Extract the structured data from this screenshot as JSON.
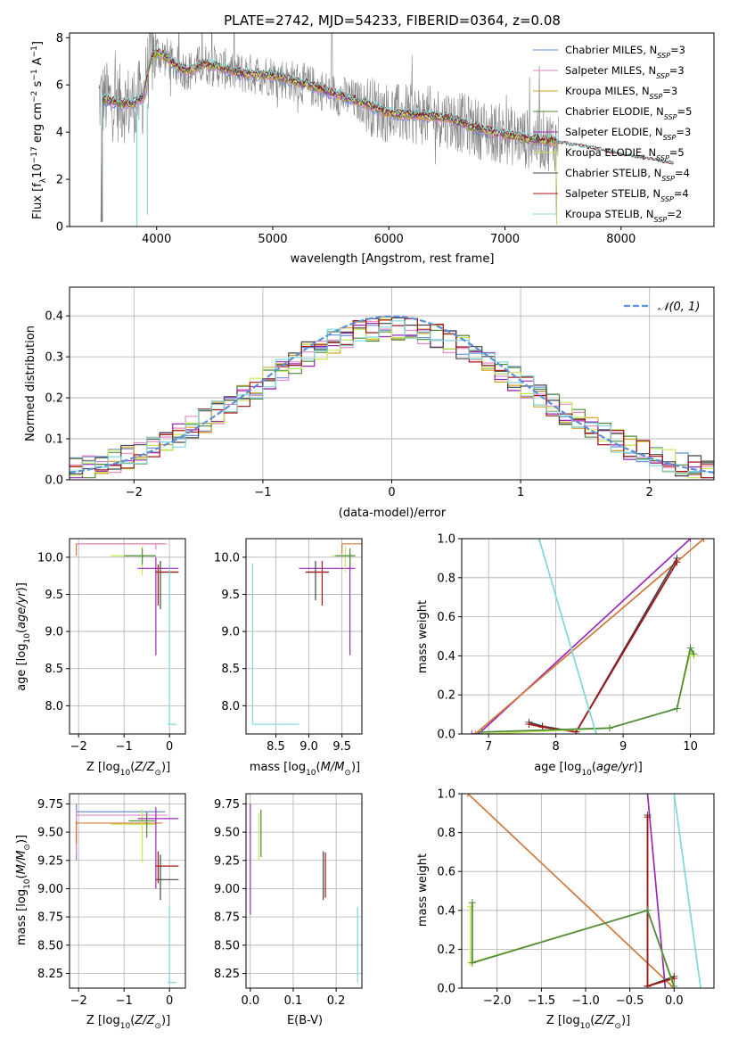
{
  "chart_data": [
    {
      "type": "line",
      "title": "PLATE=2742, MJD=54233, FIBERID=0364, z=0.08",
      "xlabel": "wavelength [Angstrom, rest frame]",
      "ylabel": "Flux [f_λ10^-17 erg cm^-2 s^-1 A^-1]",
      "xlim": [
        3250,
        8800
      ],
      "ylim": [
        0,
        8.2
      ],
      "xticks": [
        "4000",
        "5000",
        "6000",
        "7000",
        "8000"
      ],
      "yticks": [
        "0",
        "2",
        "4",
        "6",
        "8"
      ],
      "legend_position": "top-right",
      "series": [
        {
          "name": "Chabrier MILES, N_SSP=3",
          "color": "#6a8fd8"
        },
        {
          "name": "Salpeter MILES, N_SSP=3",
          "color": "#e58ac8"
        },
        {
          "name": "Kroupa MILES, N_SSP=3",
          "color": "#d6a020"
        },
        {
          "name": "Chabrier ELODIE, N_SSP=5",
          "color": "#4f8a3c"
        },
        {
          "name": "Salpeter ELODIE, N_SSP=3",
          "color": "#9b2ab8"
        },
        {
          "name": "Kroupa ELODIE, N_SSP=5",
          "color": "#c8e855"
        },
        {
          "name": "Chabrier STELIB, N_SSP=4",
          "color": "#444444"
        },
        {
          "name": "Salpeter STELIB, N_SSP=4",
          "color": "#a41515"
        },
        {
          "name": "Kroupa STELIB, N_SSP=2",
          "color": "#7fd8d8"
        }
      ],
      "data_color": "#808080",
      "model_profile": {
        "x": [
          3530,
          3600,
          3700,
          3800,
          3880,
          3950,
          4000,
          4100,
          4200,
          4300,
          4400,
          4500,
          4700,
          5000,
          5300,
          5600,
          5800,
          6000,
          6300,
          6500,
          6800,
          7000,
          7200,
          7450
        ],
        "y": [
          5.4,
          5.3,
          5.2,
          5.2,
          5.5,
          7.1,
          7.4,
          7.1,
          6.7,
          6.6,
          6.9,
          6.8,
          6.5,
          6.4,
          6.0,
          5.5,
          5.2,
          4.8,
          4.7,
          4.6,
          4.1,
          3.9,
          3.7,
          3.6
        ]
      },
      "stelib_tail": {
        "x": [
          7450,
          7800,
          8100,
          8450
        ],
        "y": [
          3.6,
          3.3,
          3.0,
          2.7
        ]
      }
    },
    {
      "type": "step",
      "xlabel": "(data-model)/error",
      "ylabel": "Normed distribution",
      "xlim": [
        -2.5,
        2.5
      ],
      "ylim": [
        0,
        0.47
      ],
      "xticks": [
        "−2",
        "−1",
        "0",
        "1",
        "2"
      ],
      "yticks": [
        "0.0",
        "0.1",
        "0.2",
        "0.3",
        "0.4"
      ],
      "legend_position": "top-right",
      "reference": {
        "name": "𝒩(0, 1)",
        "color": "#5b8fd9"
      },
      "bin_width": 0.1,
      "series": [
        {
          "name": "Chabrier MILES, N_SSP=3",
          "color": "#6a8fd8"
        },
        {
          "name": "Salpeter MILES, N_SSP=3",
          "color": "#e58ac8"
        },
        {
          "name": "Kroupa MILES, N_SSP=3",
          "color": "#d6a020"
        },
        {
          "name": "Chabrier ELODIE, N_SSP=5",
          "color": "#4f8a3c"
        },
        {
          "name": "Salpeter ELODIE, N_SSP=3",
          "color": "#9b2ab8"
        },
        {
          "name": "Kroupa ELODIE, N_SSP=5",
          "color": "#c8e855"
        },
        {
          "name": "Chabrier STELIB, N_SSP=4",
          "color": "#444444"
        },
        {
          "name": "Salpeter STELIB, N_SSP=4",
          "color": "#a41515"
        },
        {
          "name": "Kroupa STELIB, N_SSP=2",
          "color": "#7fd8d8"
        }
      ]
    },
    {
      "type": "errorbar",
      "xlabel": "Z [log10(Z/Z⊙)]",
      "ylabel": "age [log10(age/yr)]",
      "xlim": [
        -2.2,
        0.35
      ],
      "ylim": [
        7.62,
        10.25
      ],
      "xticks": [
        "−2",
        "−1",
        "0"
      ],
      "yticks": [
        "8.0",
        "8.5",
        "9.0",
        "9.5",
        "10.0"
      ],
      "points": [
        {
          "color": "#6a8fd8",
          "x": [
            -2.05,
            -0.1
          ],
          "y": [
            10.18,
            10.18
          ]
        },
        {
          "color": "#e58ac8",
          "x": [
            -2.05,
            -0.05
          ],
          "y": [
            10.18,
            10.18
          ]
        },
        {
          "color": "#d6a020",
          "x": [
            -2.05,
            -0.2
          ],
          "y": [
            10.18,
            10.18
          ]
        },
        {
          "color": "#4f8a3c",
          "x": [
            -1.3,
            -0.3
          ],
          "y": [
            10.02,
            10.02
          ]
        },
        {
          "color": "#9b2ab8",
          "x": [
            -0.7,
            0.2
          ],
          "y": [
            9.85,
            9.85
          ]
        },
        {
          "color": "#c8e855",
          "x": [
            -1.4,
            -0.3
          ],
          "y": [
            10.02,
            10.02
          ]
        },
        {
          "color": "#444444",
          "x": [
            -0.3,
            0.2
          ],
          "y": [
            9.8,
            9.8
          ]
        },
        {
          "color": "#a41515",
          "x": [
            -0.3,
            0.2
          ],
          "y": [
            9.8,
            9.8
          ]
        },
        {
          "color": "#7fd8d8",
          "x": [
            -0.03,
            0.15
          ],
          "y": [
            7.75,
            7.75
          ]
        }
      ]
    },
    {
      "type": "errorbar",
      "xlabel": "mass [log10(M/M⊙)]",
      "ylabel": "",
      "xlim": [
        8.05,
        9.8
      ],
      "ylim": [
        7.62,
        10.25
      ],
      "xticks": [
        "8.5",
        "9.0",
        "9.5"
      ],
      "yticks": [
        "8.0",
        "8.5",
        "9.0",
        "9.5",
        "10.0"
      ]
    },
    {
      "type": "line",
      "xlabel": "age [log10(age/yr)]",
      "ylabel": "mass weight",
      "xlim": [
        6.6,
        10.35
      ],
      "ylim": [
        0,
        1
      ],
      "xticks": [
        "7",
        "8",
        "9",
        "10"
      ],
      "yticks": [
        "0.0",
        "0.2",
        "0.4",
        "0.6",
        "0.8",
        "1.0"
      ],
      "series": [
        {
          "color": "#9b2ab8",
          "x": [
            6.75,
            6.85,
            10.0
          ],
          "y": [
            0.0,
            0.0,
            1.0
          ]
        },
        {
          "color": "#d07838",
          "x": [
            6.8,
            10.2
          ],
          "y": [
            0.0,
            1.0
          ]
        },
        {
          "color": "#444444",
          "x": [
            7.6,
            7.8,
            8.3,
            9.8
          ],
          "y": [
            0.06,
            0.04,
            0.01,
            0.9
          ]
        },
        {
          "color": "#a41515",
          "x": [
            7.6,
            7.8,
            8.3,
            9.8
          ],
          "y": [
            0.05,
            0.035,
            0.01,
            0.88
          ]
        },
        {
          "color": "#c8e855",
          "x": [
            6.9,
            8.8,
            9.8,
            10.0,
            10.05
          ],
          "y": [
            0.0,
            0.03,
            0.13,
            0.42,
            0.4
          ]
        },
        {
          "color": "#4f8a3c",
          "x": [
            6.9,
            8.8,
            9.8,
            10.0,
            10.05
          ],
          "y": [
            0.01,
            0.03,
            0.13,
            0.44,
            0.41
          ]
        },
        {
          "color": "#7fd8d8",
          "x": [
            7.75,
            8.6
          ],
          "y": [
            1.0,
            0.0
          ]
        }
      ]
    },
    {
      "type": "errorbar",
      "xlabel": "Z [log10(Z/Z⊙)]",
      "ylabel": "mass [log10(M/M⊙)]",
      "xlim": [
        -2.2,
        0.35
      ],
      "ylim": [
        8.12,
        9.84
      ],
      "xticks": [
        "−2",
        "−1",
        "0"
      ],
      "yticks": [
        "8.25",
        "8.50",
        "8.75",
        "9.00",
        "9.25",
        "9.50",
        "9.75"
      ]
    },
    {
      "type": "errorbar",
      "xlabel": "E(B-V)",
      "ylabel": "",
      "xlim": [
        -0.01,
        0.26
      ],
      "ylim": [
        8.12,
        9.84
      ],
      "xticks": [
        "0.0",
        "0.1",
        "0.2"
      ],
      "yticks": [
        "8.25",
        "8.50",
        "8.75",
        "9.00",
        "9.25",
        "9.50",
        "9.75"
      ]
    },
    {
      "type": "line",
      "xlabel": "Z [log10(Z/Z⊙)]",
      "ylabel": "mass weight",
      "xlim": [
        -2.4,
        0.45
      ],
      "ylim": [
        0,
        1
      ],
      "xticks": [
        "−2.0",
        "−1.5",
        "−1.0",
        "−0.5",
        "0.0"
      ],
      "yticks": [
        "0.0",
        "0.2",
        "0.4",
        "0.6",
        "0.8",
        "1.0"
      ],
      "series": [
        {
          "color": "#d07838",
          "x": [
            -2.33,
            0.0
          ],
          "y": [
            1.0,
            0.0
          ]
        },
        {
          "color": "#9b2ab8",
          "x": [
            -0.3,
            -0.1
          ],
          "y": [
            1.0,
            0.0
          ]
        },
        {
          "color": "#444444",
          "x": [
            -0.3,
            -0.3,
            0.0,
            -0.3
          ],
          "y": [
            0.89,
            0.01,
            0.06,
            0.01
          ]
        },
        {
          "color": "#a41515",
          "x": [
            -0.3,
            -0.3,
            0.0,
            -0.3
          ],
          "y": [
            0.88,
            0.01,
            0.05,
            0.01
          ]
        },
        {
          "color": "#c8e855",
          "x": [
            -2.3,
            -2.3,
            -0.3,
            0.0
          ],
          "y": [
            0.42,
            0.13,
            0.4,
            0.0
          ]
        },
        {
          "color": "#4f8a3c",
          "x": [
            -2.28,
            -2.28,
            -0.3,
            0.0
          ],
          "y": [
            0.44,
            0.13,
            0.4,
            0.01
          ]
        },
        {
          "color": "#7fd8d8",
          "x": [
            0.0,
            0.3
          ],
          "y": [
            1.0,
            0.0
          ]
        }
      ]
    }
  ]
}
